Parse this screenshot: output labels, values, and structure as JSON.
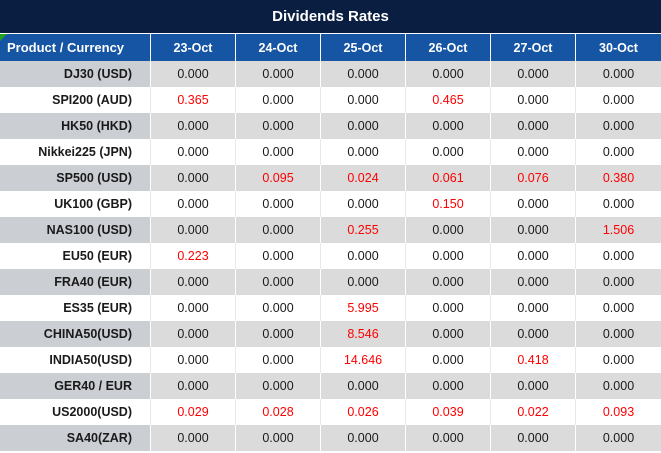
{
  "colors": {
    "title_bar_bg": "#0A1E42",
    "header_bg": "#1655A3",
    "header_text": "#FFFFFF",
    "gray_row_bg": "#DBDBDB",
    "gray_row_product_bg": "#CBCED3",
    "white_row_bg": "#FFFFFF",
    "value_text": "#1A1A1A",
    "highlight_red": "#FE0000",
    "corner_marker_green": "#21A121"
  },
  "chart_data": {
    "type": "table",
    "title": "Dividends Rates",
    "columns": [
      "Product / Currency",
      "23-Oct",
      "24-Oct",
      "25-Oct",
      "26-Oct",
      "27-Oct",
      "30-Oct"
    ],
    "rows": [
      {
        "product": "DJ30 (USD)",
        "values": [
          "0.000",
          "0.000",
          "0.000",
          "0.000",
          "0.000",
          "0.000"
        ],
        "red_columns": []
      },
      {
        "product": "SPI200 (AUD)",
        "values": [
          "0.365",
          "0.000",
          "0.000",
          "0.465",
          "0.000",
          "0.000"
        ],
        "red_columns": [
          0,
          3
        ]
      },
      {
        "product": "HK50 (HKD)",
        "values": [
          "0.000",
          "0.000",
          "0.000",
          "0.000",
          "0.000",
          "0.000"
        ],
        "red_columns": []
      },
      {
        "product": "Nikkei225 (JPN)",
        "values": [
          "0.000",
          "0.000",
          "0.000",
          "0.000",
          "0.000",
          "0.000"
        ],
        "red_columns": []
      },
      {
        "product": "SP500 (USD)",
        "values": [
          "0.000",
          "0.095",
          "0.024",
          "0.061",
          "0.076",
          "0.380"
        ],
        "red_columns": [
          1,
          2,
          3,
          4,
          5
        ]
      },
      {
        "product": "UK100 (GBP)",
        "values": [
          "0.000",
          "0.000",
          "0.000",
          "0.150",
          "0.000",
          "0.000"
        ],
        "red_columns": [
          3
        ]
      },
      {
        "product": "NAS100 (USD)",
        "values": [
          "0.000",
          "0.000",
          "0.255",
          "0.000",
          "0.000",
          "1.506"
        ],
        "red_columns": [
          2,
          5
        ]
      },
      {
        "product": "EU50 (EUR)",
        "values": [
          "0.223",
          "0.000",
          "0.000",
          "0.000",
          "0.000",
          "0.000"
        ],
        "red_columns": [
          0
        ]
      },
      {
        "product": "FRA40 (EUR)",
        "values": [
          "0.000",
          "0.000",
          "0.000",
          "0.000",
          "0.000",
          "0.000"
        ],
        "red_columns": []
      },
      {
        "product": "ES35 (EUR)",
        "values": [
          "0.000",
          "0.000",
          "5.995",
          "0.000",
          "0.000",
          "0.000"
        ],
        "red_columns": [
          2
        ]
      },
      {
        "product": "CHINA50(USD)",
        "values": [
          "0.000",
          "0.000",
          "8.546",
          "0.000",
          "0.000",
          "0.000"
        ],
        "red_columns": [
          2
        ]
      },
      {
        "product": "INDIA50(USD)",
        "values": [
          "0.000",
          "0.000",
          "14.646",
          "0.000",
          "0.418",
          "0.000"
        ],
        "red_columns": [
          2,
          4
        ]
      },
      {
        "product": "GER40 / EUR",
        "values": [
          "0.000",
          "0.000",
          "0.000",
          "0.000",
          "0.000",
          "0.000"
        ],
        "red_columns": []
      },
      {
        "product": "US2000(USD)",
        "values": [
          "0.029",
          "0.028",
          "0.026",
          "0.039",
          "0.022",
          "0.093"
        ],
        "red_columns": [
          0,
          1,
          2,
          3,
          4,
          5
        ]
      },
      {
        "product": "SA40(ZAR)",
        "values": [
          "0.000",
          "0.000",
          "0.000",
          "0.000",
          "0.000",
          "0.000"
        ],
        "red_columns": []
      }
    ]
  }
}
